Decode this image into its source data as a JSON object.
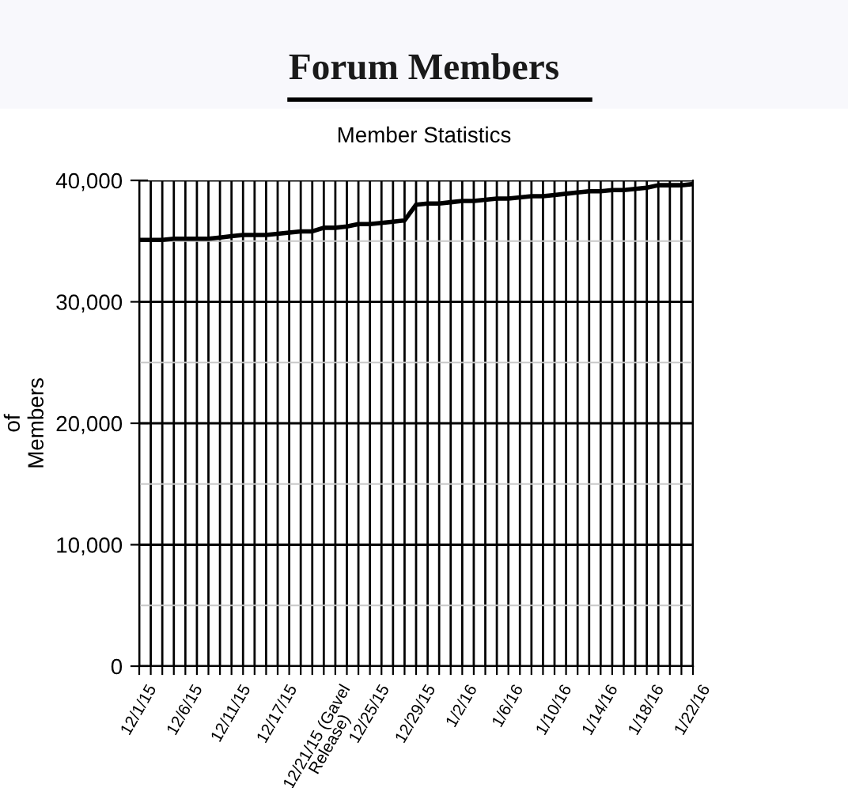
{
  "chart_data": {
    "type": "line",
    "title": "Forum Members",
    "subtitle": "Member Statistics",
    "ylabel": "of\nMembers",
    "categories": [
      "12/1/15",
      null,
      null,
      null,
      "12/6/15",
      null,
      null,
      null,
      "12/11/15",
      null,
      null,
      null,
      "12/17/15",
      null,
      null,
      null,
      "12/21/15 (Gavel\nRelease)",
      null,
      null,
      null,
      "12/25/15",
      null,
      null,
      null,
      "12/29/15",
      null,
      null,
      null,
      "1/2/16",
      null,
      null,
      null,
      "1/6/16",
      null,
      null,
      null,
      "1/10/16",
      null,
      null,
      null,
      "1/14/16",
      null,
      null,
      null,
      "1/18/16",
      null,
      null,
      null,
      "1/22/16"
    ],
    "series": [
      {
        "color": "#000000",
        "values": [
          35100,
          35100,
          35100,
          35200,
          35200,
          35200,
          35200,
          35300,
          35400,
          35500,
          35500,
          35500,
          35600,
          35700,
          35800,
          35800,
          36100,
          36100,
          36200,
          36400,
          36400,
          36500,
          36600,
          36700,
          38000,
          38100,
          38100,
          38200,
          38300,
          38300,
          38400,
          38500,
          38500,
          38600,
          38700,
          38700,
          38800,
          38900,
          39000,
          39100,
          39100,
          39200,
          39200,
          39300,
          39400,
          39600,
          39600,
          39600,
          39700
        ]
      }
    ],
    "ylim": [
      0,
      40000
    ],
    "yticks": [
      {
        "value": 0,
        "label": "0"
      },
      {
        "value": 5000,
        "label": null
      },
      {
        "value": 10000,
        "label": "10,000"
      },
      {
        "value": 15000,
        "label": null
      },
      {
        "value": 20000,
        "label": "20,000"
      },
      {
        "value": 25000,
        "label": null
      },
      {
        "value": 30000,
        "label": "30,000"
      },
      {
        "value": 35000,
        "label": null
      },
      {
        "value": 40000,
        "label": "40,000"
      }
    ],
    "grid": true,
    "legend": false,
    "marker": "none",
    "line_style": "solid"
  }
}
